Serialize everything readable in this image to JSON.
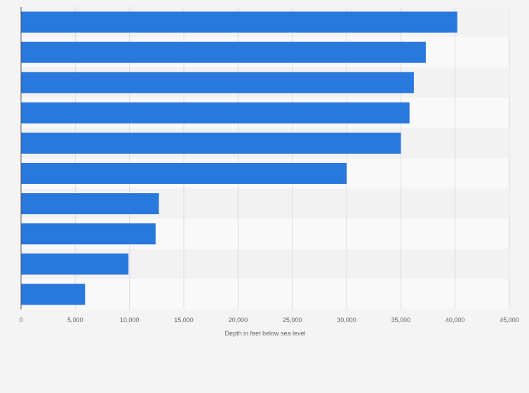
{
  "chart_data": {
    "type": "bar",
    "orientation": "horizontal",
    "categories": [
      "",
      "",
      "",
      "",
      "",
      "",
      "",
      "",
      "",
      ""
    ],
    "values": [
      40200,
      37300,
      36200,
      35800,
      35000,
      30000,
      12700,
      12400,
      9900,
      5900
    ],
    "xlabel": "Depth in feet below sea level",
    "xlim": [
      0,
      45000
    ],
    "x_ticks": [
      0,
      5000,
      10000,
      15000,
      20000,
      25000,
      30000,
      35000,
      40000,
      45000
    ],
    "x_tick_labels": [
      "0",
      "5,000",
      "10,000",
      "15,000",
      "20,000",
      "25,000",
      "30,000",
      "35,000",
      "40,000",
      "45,000"
    ],
    "grid": "vertical",
    "colors": {
      "bar": "#2878dd",
      "band_light": "#f9f9f9",
      "band_dark": "#f2f2f2",
      "gridline": "#dddddd",
      "axis": "#555555",
      "text": "#666666"
    }
  }
}
